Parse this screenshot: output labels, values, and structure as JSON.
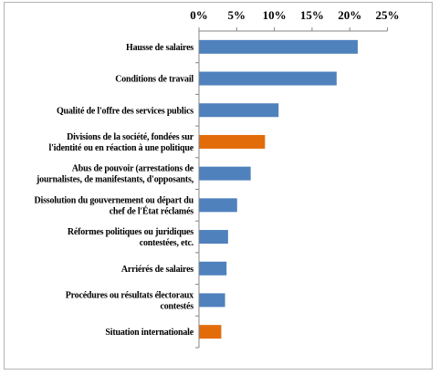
{
  "chart_data": {
    "type": "bar",
    "orientation": "horizontal",
    "axis_position": "top",
    "xlim": [
      0,
      25
    ],
    "xticks": [
      "0%",
      "5%",
      "10%",
      "15%",
      "20%",
      "25%"
    ],
    "xtick_values": [
      0,
      5,
      10,
      15,
      20,
      25
    ],
    "grid": false,
    "legend": "none",
    "categories": [
      {
        "lines": [
          "Hausse de salaires"
        ],
        "value": 21.0,
        "color": "#4f81bd"
      },
      {
        "lines": [
          "Conditions de travail"
        ],
        "value": 18.2,
        "color": "#4f81bd"
      },
      {
        "lines": [
          "Qualité de l'offre des services publics"
        ],
        "value": 10.5,
        "color": "#4f81bd"
      },
      {
        "lines": [
          "Divisions de la société, fondées sur",
          "l'identité ou en réaction à une politique"
        ],
        "value": 8.7,
        "color": "#e36c0a"
      },
      {
        "lines": [
          "Abus de pouvoir (arrestations de",
          "journalistes, de manifestants, d'opposants,"
        ],
        "value": 6.8,
        "color": "#4f81bd"
      },
      {
        "lines": [
          "Dissolution du gouvernement ou départ du",
          "chef de l'État réclamés"
        ],
        "value": 5.0,
        "color": "#4f81bd"
      },
      {
        "lines": [
          "Réformes politiques ou juridiques",
          "contestées, etc."
        ],
        "value": 3.8,
        "color": "#4f81bd"
      },
      {
        "lines": [
          "Arriérés de salaires"
        ],
        "value": 3.6,
        "color": "#4f81bd"
      },
      {
        "lines": [
          "Procédures ou résultats électoraux",
          "contestés"
        ],
        "value": 3.4,
        "color": "#4f81bd"
      },
      {
        "lines": [
          "Situation internationale"
        ],
        "value": 2.9,
        "color": "#e36c0a"
      }
    ]
  }
}
